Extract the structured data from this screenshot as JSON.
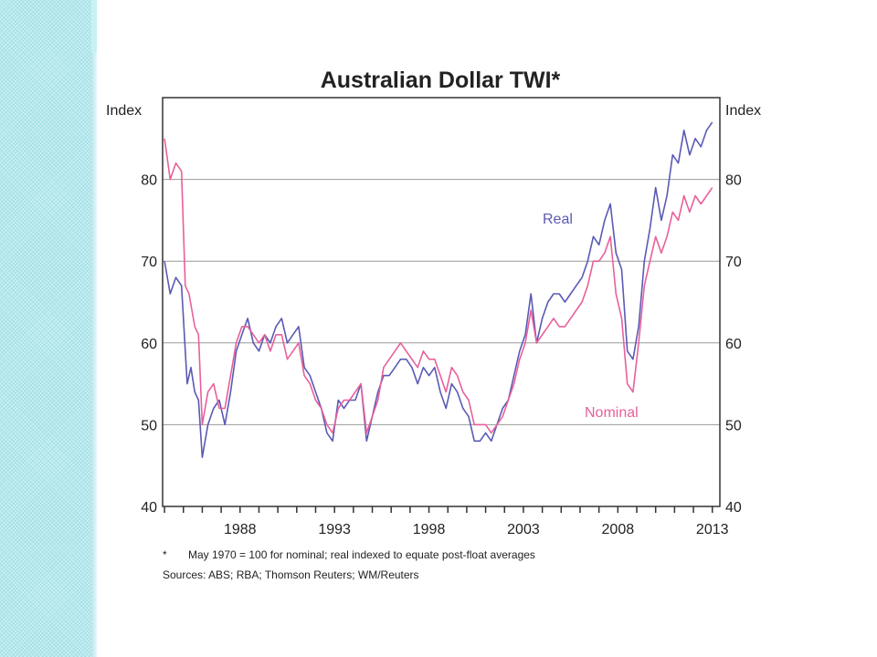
{
  "chart_data": {
    "type": "line",
    "title": "Australian Dollar TWI*",
    "ylabel_left": "Index",
    "ylabel_right": "Index",
    "ylim": [
      40,
      90
    ],
    "xlim": [
      1983.9,
      2013.4
    ],
    "yticks": [
      40,
      50,
      60,
      70,
      80
    ],
    "xtick_labels": [
      "1988",
      "1993",
      "1998",
      "2003",
      "2008",
      "2013"
    ],
    "xtick_values": [
      1988,
      1993,
      1998,
      2003,
      2008,
      2013
    ],
    "grid": true,
    "series": [
      {
        "name": "Real",
        "color": "#5a5ab4",
        "x": [
          1984.0,
          1984.3,
          1984.6,
          1984.9,
          1985.2,
          1985.4,
          1985.6,
          1985.8,
          1986.0,
          1986.3,
          1986.6,
          1986.9,
          1987.2,
          1987.5,
          1987.8,
          1988.1,
          1988.4,
          1988.7,
          1989.0,
          1989.3,
          1989.6,
          1989.9,
          1990.2,
          1990.5,
          1990.8,
          1991.1,
          1991.4,
          1991.7,
          1992.0,
          1992.3,
          1992.6,
          1992.9,
          1993.2,
          1993.5,
          1993.8,
          1994.1,
          1994.4,
          1994.7,
          1995.0,
          1995.3,
          1995.6,
          1995.9,
          1996.2,
          1996.5,
          1996.8,
          1997.1,
          1997.4,
          1997.7,
          1998.0,
          1998.3,
          1998.6,
          1998.9,
          1999.2,
          1999.5,
          1999.8,
          2000.1,
          2000.4,
          2000.7,
          2001.0,
          2001.3,
          2001.6,
          2001.9,
          2002.2,
          2002.5,
          2002.8,
          2003.1,
          2003.4,
          2003.7,
          2004.0,
          2004.3,
          2004.6,
          2004.9,
          2005.2,
          2005.5,
          2005.8,
          2006.1,
          2006.4,
          2006.7,
          2007.0,
          2007.3,
          2007.6,
          2007.9,
          2008.2,
          2008.5,
          2008.8,
          2009.1,
          2009.4,
          2009.7,
          2010.0,
          2010.3,
          2010.6,
          2010.9,
          2011.2,
          2011.5,
          2011.8,
          2012.1,
          2012.4,
          2012.7,
          2013.0
        ],
        "values": [
          70,
          66,
          68,
          67,
          55,
          57,
          54,
          53,
          46,
          50,
          52,
          53,
          50,
          54,
          59,
          61,
          63,
          60,
          59,
          61,
          60,
          62,
          63,
          60,
          61,
          62,
          57,
          56,
          54,
          52,
          49,
          48,
          53,
          52,
          53,
          53,
          55,
          48,
          51,
          54,
          56,
          56,
          57,
          58,
          58,
          57,
          55,
          57,
          56,
          57,
          54,
          52,
          55,
          54,
          52,
          51,
          48,
          48,
          49,
          48,
          50,
          52,
          53,
          56,
          59,
          61,
          66,
          60,
          63,
          65,
          66,
          66,
          65,
          66,
          67,
          68,
          70,
          73,
          72,
          75,
          77,
          71,
          69,
          59,
          58,
          62,
          70,
          74,
          79,
          75,
          78,
          83,
          82,
          86,
          83,
          85,
          84,
          86,
          87
        ]
      },
      {
        "name": "Nominal",
        "color": "#e8609a",
        "x": [
          1984.0,
          1984.3,
          1984.6,
          1984.9,
          1985.1,
          1985.3,
          1985.6,
          1985.8,
          1986.0,
          1986.3,
          1986.6,
          1986.9,
          1987.2,
          1987.5,
          1987.8,
          1988.1,
          1988.4,
          1988.7,
          1989.0,
          1989.3,
          1989.6,
          1989.9,
          1990.2,
          1990.5,
          1990.8,
          1991.1,
          1991.4,
          1991.7,
          1992.0,
          1992.3,
          1992.6,
          1992.9,
          1993.2,
          1993.5,
          1993.8,
          1994.1,
          1994.4,
          1994.7,
          1995.0,
          1995.3,
          1995.6,
          1995.9,
          1996.2,
          1996.5,
          1996.8,
          1997.1,
          1997.4,
          1997.7,
          1998.0,
          1998.3,
          1998.6,
          1998.9,
          1999.2,
          1999.5,
          1999.8,
          2000.1,
          2000.4,
          2000.7,
          2001.0,
          2001.3,
          2001.6,
          2001.9,
          2002.2,
          2002.5,
          2002.8,
          2003.1,
          2003.4,
          2003.7,
          2004.0,
          2004.3,
          2004.6,
          2004.9,
          2005.2,
          2005.5,
          2005.8,
          2006.1,
          2006.4,
          2006.7,
          2007.0,
          2007.3,
          2007.6,
          2007.9,
          2008.2,
          2008.5,
          2008.8,
          2009.1,
          2009.4,
          2009.7,
          2010.0,
          2010.3,
          2010.6,
          2010.9,
          2011.2,
          2011.5,
          2011.8,
          2012.1,
          2012.4,
          2012.7,
          2013.0
        ],
        "values": [
          85,
          80,
          82,
          81,
          67,
          66,
          62,
          61,
          50,
          54,
          55,
          52,
          52,
          56,
          60,
          62,
          62,
          61,
          60,
          61,
          59,
          61,
          61,
          58,
          59,
          60,
          56,
          55,
          53,
          52,
          50,
          49,
          52,
          53,
          53,
          54,
          55,
          49,
          51,
          53,
          57,
          58,
          59,
          60,
          59,
          58,
          57,
          59,
          58,
          58,
          56,
          54,
          57,
          56,
          54,
          53,
          50,
          50,
          50,
          49,
          50,
          51,
          53,
          55,
          58,
          60,
          64,
          60,
          61,
          62,
          63,
          62,
          62,
          63,
          64,
          65,
          67,
          70,
          70,
          71,
          73,
          66,
          63,
          55,
          54,
          60,
          67,
          70,
          73,
          71,
          73,
          76,
          75,
          78,
          76,
          78,
          77,
          78,
          79
        ]
      }
    ],
    "series_labels": [
      "Real",
      "Nominal"
    ],
    "footnote_marker": "*",
    "footnote": "May 1970 = 100 for nominal; real indexed to equate post-float averages",
    "sources": "Sources: ABS; RBA; Thomson Reuters; WM/Reuters"
  }
}
